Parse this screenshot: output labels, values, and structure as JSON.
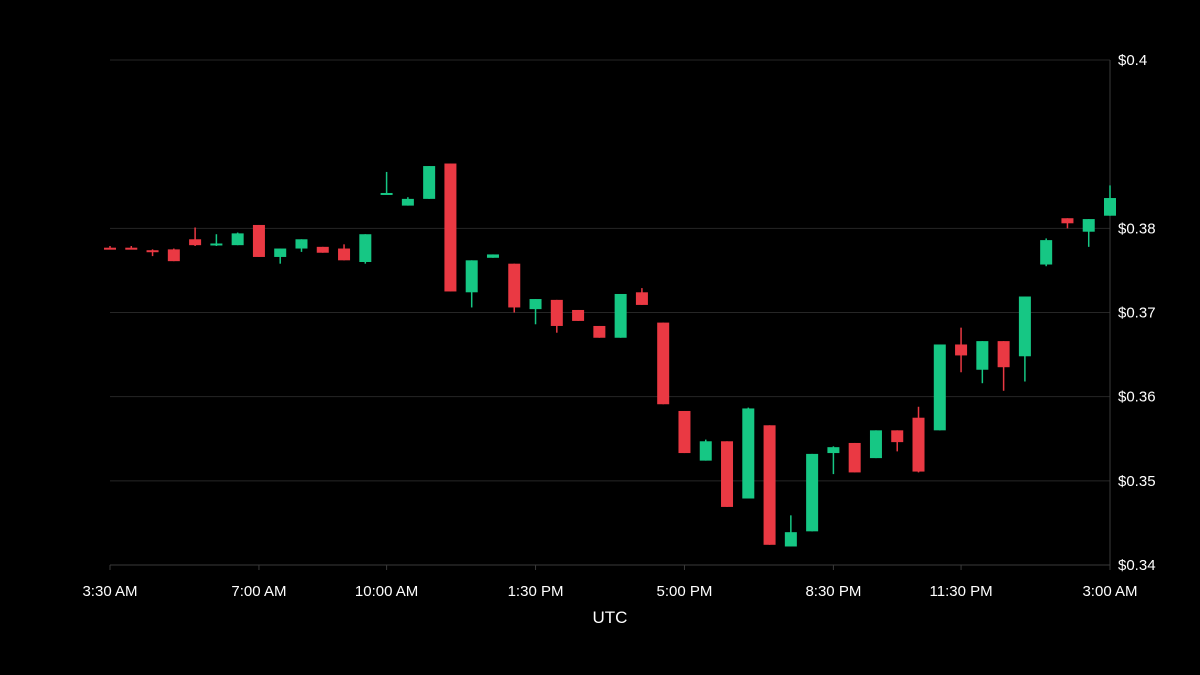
{
  "chart_data": {
    "type": "candlestick",
    "title": "",
    "xlabel": "UTC",
    "ylabel": "",
    "ylim": [
      0.34,
      0.4
    ],
    "y_ticks": [
      {
        "value": 0.34,
        "label": "$0.34"
      },
      {
        "value": 0.35,
        "label": "$0.35"
      },
      {
        "value": 0.36,
        "label": "$0.36"
      },
      {
        "value": 0.37,
        "label": "$0.37"
      },
      {
        "value": 0.38,
        "label": "$0.38"
      },
      {
        "value": 0.4,
        "label": "$0.4"
      }
    ],
    "x_ticks": [
      {
        "index": 0,
        "label": "3:30 AM"
      },
      {
        "index": 7,
        "label": "7:00 AM"
      },
      {
        "index": 13,
        "label": "10:00 AM"
      },
      {
        "index": 20,
        "label": "1:30 PM"
      },
      {
        "index": 27,
        "label": "5:00 PM"
      },
      {
        "index": 34,
        "label": "8:30 PM"
      },
      {
        "index": 40,
        "label": "11:30 PM"
      },
      {
        "index": 47,
        "label": "3:00 AM"
      }
    ],
    "grid": true,
    "y_axis_position": "right",
    "up_color": "#16c784",
    "down_color": "#ea3943",
    "candles": [
      {
        "time": "3:30 AM",
        "open": 0.3777,
        "high": 0.3779,
        "low": 0.3775,
        "close": 0.3775
      },
      {
        "time": "4:00 AM",
        "open": 0.3777,
        "high": 0.3779,
        "low": 0.3775,
        "close": 0.3775
      },
      {
        "time": "4:30 AM",
        "open": 0.3774,
        "high": 0.3775,
        "low": 0.3767,
        "close": 0.3772
      },
      {
        "time": "5:00 AM",
        "open": 0.3775,
        "high": 0.3776,
        "low": 0.3761,
        "close": 0.3761
      },
      {
        "time": "5:30 AM",
        "open": 0.3787,
        "high": 0.3801,
        "low": 0.3779,
        "close": 0.378
      },
      {
        "time": "6:00 AM",
        "open": 0.378,
        "high": 0.3793,
        "low": 0.3779,
        "close": 0.3782
      },
      {
        "time": "6:30 AM",
        "open": 0.378,
        "high": 0.3795,
        "low": 0.378,
        "close": 0.3794
      },
      {
        "time": "7:00 AM",
        "open": 0.3804,
        "high": 0.3804,
        "low": 0.3766,
        "close": 0.3766
      },
      {
        "time": "7:30 AM",
        "open": 0.3766,
        "high": 0.3776,
        "low": 0.3758,
        "close": 0.3776
      },
      {
        "time": "8:00 AM",
        "open": 0.3776,
        "high": 0.3787,
        "low": 0.3772,
        "close": 0.3787
      },
      {
        "time": "8:30 AM",
        "open": 0.3778,
        "high": 0.3778,
        "low": 0.3771,
        "close": 0.3771
      },
      {
        "time": "9:00 AM",
        "open": 0.3776,
        "high": 0.3781,
        "low": 0.3762,
        "close": 0.3762
      },
      {
        "time": "9:30 AM",
        "open": 0.376,
        "high": 0.3793,
        "low": 0.3758,
        "close": 0.3793
      },
      {
        "time": "10:00 AM",
        "open": 0.3841,
        "high": 0.3867,
        "low": 0.3841,
        "close": 0.3842
      },
      {
        "time": "10:30 AM",
        "open": 0.3827,
        "high": 0.3837,
        "low": 0.3827,
        "close": 0.3835
      },
      {
        "time": "11:00 AM",
        "open": 0.3835,
        "high": 0.3874,
        "low": 0.3835,
        "close": 0.3874
      },
      {
        "time": "11:30 AM",
        "open": 0.3877,
        "high": 0.3877,
        "low": 0.3725,
        "close": 0.3725
      },
      {
        "time": "12:00 PM",
        "open": 0.3724,
        "high": 0.3762,
        "low": 0.3706,
        "close": 0.3762
      },
      {
        "time": "12:30 PM",
        "open": 0.3765,
        "high": 0.3769,
        "low": 0.3765,
        "close": 0.3769
      },
      {
        "time": "1:00 PM",
        "open": 0.3758,
        "high": 0.3758,
        "low": 0.37,
        "close": 0.3706
      },
      {
        "time": "1:30 PM",
        "open": 0.3704,
        "high": 0.3716,
        "low": 0.3686,
        "close": 0.3716
      },
      {
        "time": "2:00 PM",
        "open": 0.3715,
        "high": 0.3715,
        "low": 0.3676,
        "close": 0.3684
      },
      {
        "time": "2:30 PM",
        "open": 0.3703,
        "high": 0.3703,
        "low": 0.369,
        "close": 0.369
      },
      {
        "time": "3:00 PM",
        "open": 0.3684,
        "high": 0.3684,
        "low": 0.367,
        "close": 0.367
      },
      {
        "time": "3:30 PM",
        "open": 0.367,
        "high": 0.3722,
        "low": 0.367,
        "close": 0.3722
      },
      {
        "time": "4:00 PM",
        "open": 0.3724,
        "high": 0.3729,
        "low": 0.3709,
        "close": 0.3709
      },
      {
        "time": "4:30 PM",
        "open": 0.3688,
        "high": 0.3688,
        "low": 0.3591,
        "close": 0.3591
      },
      {
        "time": "5:00 PM",
        "open": 0.3583,
        "high": 0.3583,
        "low": 0.3533,
        "close": 0.3533
      },
      {
        "time": "5:30 PM",
        "open": 0.3524,
        "high": 0.3549,
        "low": 0.3524,
        "close": 0.3547
      },
      {
        "time": "6:00 PM",
        "open": 0.3547,
        "high": 0.3547,
        "low": 0.3469,
        "close": 0.3469
      },
      {
        "time": "6:30 PM",
        "open": 0.3479,
        "high": 0.3587,
        "low": 0.3479,
        "close": 0.3586
      },
      {
        "time": "7:00 PM",
        "open": 0.3566,
        "high": 0.3566,
        "low": 0.3424,
        "close": 0.3424
      },
      {
        "time": "7:30 PM",
        "open": 0.3422,
        "high": 0.3459,
        "low": 0.3422,
        "close": 0.3439
      },
      {
        "time": "8:00 PM",
        "open": 0.344,
        "high": 0.3532,
        "low": 0.344,
        "close": 0.3532
      },
      {
        "time": "8:30 PM",
        "open": 0.3533,
        "high": 0.3541,
        "low": 0.3508,
        "close": 0.354
      },
      {
        "time": "9:00 PM",
        "open": 0.3545,
        "high": 0.3545,
        "low": 0.351,
        "close": 0.351
      },
      {
        "time": "9:30 PM",
        "open": 0.3527,
        "high": 0.356,
        "low": 0.3527,
        "close": 0.356
      },
      {
        "time": "10:00 PM",
        "open": 0.356,
        "high": 0.356,
        "low": 0.3535,
        "close": 0.3546
      },
      {
        "time": "10:30 PM",
        "open": 0.3575,
        "high": 0.3588,
        "low": 0.351,
        "close": 0.3511
      },
      {
        "time": "11:00 PM",
        "open": 0.356,
        "high": 0.3662,
        "low": 0.356,
        "close": 0.3662
      },
      {
        "time": "11:30 PM",
        "open": 0.3662,
        "high": 0.3682,
        "low": 0.3629,
        "close": 0.3649
      },
      {
        "time": "12:00 AM",
        "open": 0.3632,
        "high": 0.3666,
        "low": 0.3616,
        "close": 0.3666
      },
      {
        "time": "12:30 AM",
        "open": 0.3666,
        "high": 0.3666,
        "low": 0.3607,
        "close": 0.3635
      },
      {
        "time": "1:00 AM",
        "open": 0.3648,
        "high": 0.3719,
        "low": 0.3618,
        "close": 0.3719
      },
      {
        "time": "1:30 AM",
        "open": 0.3757,
        "high": 0.3788,
        "low": 0.3755,
        "close": 0.3786
      },
      {
        "time": "2:00 AM",
        "open": 0.3812,
        "high": 0.3812,
        "low": 0.38,
        "close": 0.3806
      },
      {
        "time": "2:30 AM",
        "open": 0.3796,
        "high": 0.3811,
        "low": 0.3778,
        "close": 0.3811
      },
      {
        "time": "3:00 AM",
        "open": 0.3815,
        "high": 0.3851,
        "low": 0.3815,
        "close": 0.3836
      }
    ]
  }
}
